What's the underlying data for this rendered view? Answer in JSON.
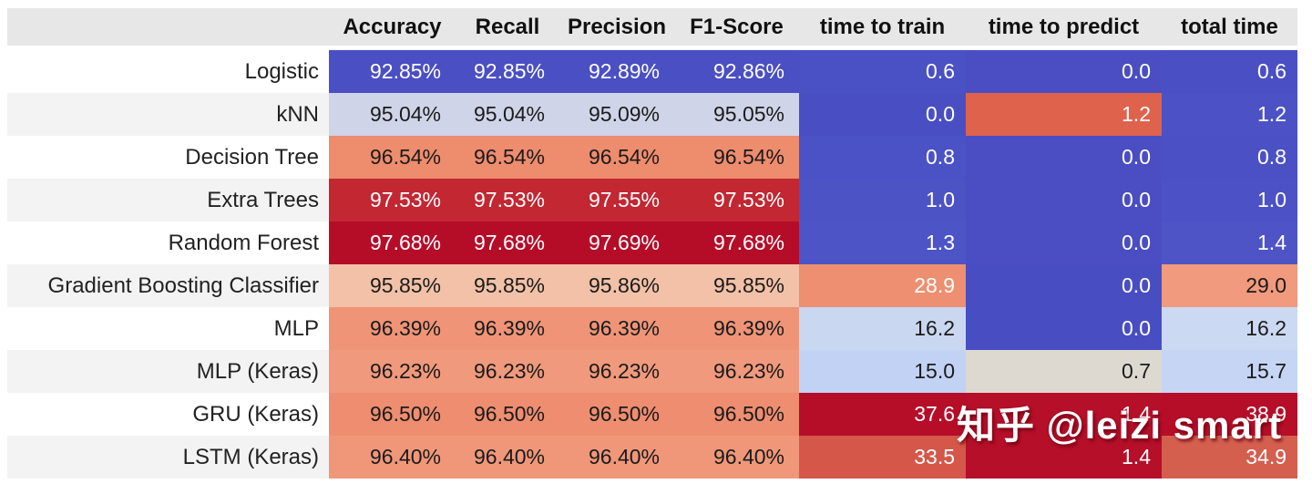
{
  "colors": {
    "header_bg": "#e8e7e7",
    "label_stripe": "#f3f3f3",
    "label_plain": "#ffffff",
    "header_text": "#111111",
    "label_text": "#222222"
  },
  "table": {
    "corner_label": "",
    "columns": [
      {
        "label": "Accuracy"
      },
      {
        "label": "Recall"
      },
      {
        "label": "Precision"
      },
      {
        "label": "F1-Score"
      },
      {
        "label": "time to train"
      },
      {
        "label": "time to predict"
      },
      {
        "label": "total time"
      }
    ],
    "rows": [
      {
        "label": "Logistic",
        "cells": [
          {
            "text": "92.85%",
            "bg": "#4a4fc3",
            "fg": "#ffffff"
          },
          {
            "text": "92.85%",
            "bg": "#4a4fc3",
            "fg": "#ffffff"
          },
          {
            "text": "92.89%",
            "bg": "#4a4fc3",
            "fg": "#ffffff"
          },
          {
            "text": "92.86%",
            "bg": "#4a4fc3",
            "fg": "#ffffff"
          },
          {
            "text": "0.6",
            "bg": "#4a51c4",
            "fg": "#ffffff"
          },
          {
            "text": "0.0",
            "bg": "#4a4ec2",
            "fg": "#ffffff"
          },
          {
            "text": "0.6",
            "bg": "#4a50c3",
            "fg": "#ffffff"
          }
        ]
      },
      {
        "label": "kNN",
        "cells": [
          {
            "text": "95.04%",
            "bg": "#cfd4e8",
            "fg": "#1b1b1b"
          },
          {
            "text": "95.04%",
            "bg": "#cfd4e8",
            "fg": "#1b1b1b"
          },
          {
            "text": "95.09%",
            "bg": "#cfd4e8",
            "fg": "#1b1b1b"
          },
          {
            "text": "95.05%",
            "bg": "#cfd4e8",
            "fg": "#1b1b1b"
          },
          {
            "text": "0.0",
            "bg": "#494fc2",
            "fg": "#ffffff"
          },
          {
            "text": "1.2",
            "bg": "#df624d",
            "fg": "#ffffff"
          },
          {
            "text": "1.2",
            "bg": "#4c52c5",
            "fg": "#ffffff"
          }
        ]
      },
      {
        "label": "Decision Tree",
        "cells": [
          {
            "text": "96.54%",
            "bg": "#ee8c6e",
            "fg": "#1b1b1b"
          },
          {
            "text": "96.54%",
            "bg": "#ee8c6e",
            "fg": "#1b1b1b"
          },
          {
            "text": "96.54%",
            "bg": "#ee8c6e",
            "fg": "#1b1b1b"
          },
          {
            "text": "96.54%",
            "bg": "#ee8c6e",
            "fg": "#1b1b1b"
          },
          {
            "text": "0.8",
            "bg": "#4b52c5",
            "fg": "#ffffff"
          },
          {
            "text": "0.0",
            "bg": "#4a4ec2",
            "fg": "#ffffff"
          },
          {
            "text": "0.8",
            "bg": "#4b51c4",
            "fg": "#ffffff"
          }
        ]
      },
      {
        "label": "Extra Trees",
        "cells": [
          {
            "text": "97.53%",
            "bg": "#c22732",
            "fg": "#ffffff"
          },
          {
            "text": "97.53%",
            "bg": "#c22732",
            "fg": "#ffffff"
          },
          {
            "text": "97.55%",
            "bg": "#c22732",
            "fg": "#ffffff"
          },
          {
            "text": "97.53%",
            "bg": "#c22732",
            "fg": "#ffffff"
          },
          {
            "text": "1.0",
            "bg": "#4c53c5",
            "fg": "#ffffff"
          },
          {
            "text": "0.0",
            "bg": "#4a4ec2",
            "fg": "#ffffff"
          },
          {
            "text": "1.0",
            "bg": "#4c52c5",
            "fg": "#ffffff"
          }
        ]
      },
      {
        "label": "Random Forest",
        "cells": [
          {
            "text": "97.68%",
            "bg": "#b50d28",
            "fg": "#ffffff"
          },
          {
            "text": "97.68%",
            "bg": "#b50d28",
            "fg": "#ffffff"
          },
          {
            "text": "97.69%",
            "bg": "#b50d28",
            "fg": "#ffffff"
          },
          {
            "text": "97.68%",
            "bg": "#b50d28",
            "fg": "#ffffff"
          },
          {
            "text": "1.3",
            "bg": "#4d54c6",
            "fg": "#ffffff"
          },
          {
            "text": "0.0",
            "bg": "#4a4ec2",
            "fg": "#ffffff"
          },
          {
            "text": "1.4",
            "bg": "#4e54c6",
            "fg": "#ffffff"
          }
        ]
      },
      {
        "label": "Gradient Boosting Classifier",
        "cells": [
          {
            "text": "95.85%",
            "bg": "#f2c1a7",
            "fg": "#1b1b1b"
          },
          {
            "text": "95.85%",
            "bg": "#f2c1a7",
            "fg": "#1b1b1b"
          },
          {
            "text": "95.86%",
            "bg": "#f2c1a7",
            "fg": "#1b1b1b"
          },
          {
            "text": "95.85%",
            "bg": "#f2c1a7",
            "fg": "#1b1b1b"
          },
          {
            "text": "28.9",
            "bg": "#ee8f71",
            "fg": "#ffffff"
          },
          {
            "text": "0.0",
            "bg": "#484ec2",
            "fg": "#ffffff"
          },
          {
            "text": "29.0",
            "bg": "#f19a7d",
            "fg": "#1b1b1b"
          }
        ]
      },
      {
        "label": "MLP",
        "cells": [
          {
            "text": "96.39%",
            "bg": "#ef9477",
            "fg": "#1b1b1b"
          },
          {
            "text": "96.39%",
            "bg": "#ef9477",
            "fg": "#1b1b1b"
          },
          {
            "text": "96.39%",
            "bg": "#ef9477",
            "fg": "#1b1b1b"
          },
          {
            "text": "96.39%",
            "bg": "#ef9477",
            "fg": "#1b1b1b"
          },
          {
            "text": "16.2",
            "bg": "#c9d7f0",
            "fg": "#1b1b1b"
          },
          {
            "text": "0.0",
            "bg": "#484ec2",
            "fg": "#ffffff"
          },
          {
            "text": "16.2",
            "bg": "#cbd9f2",
            "fg": "#1b1b1b"
          }
        ]
      },
      {
        "label": "MLP (Keras)",
        "cells": [
          {
            "text": "96.23%",
            "bg": "#f0997c",
            "fg": "#1b1b1b"
          },
          {
            "text": "96.23%",
            "bg": "#f0997c",
            "fg": "#1b1b1b"
          },
          {
            "text": "96.23%",
            "bg": "#f0997c",
            "fg": "#1b1b1b"
          },
          {
            "text": "96.23%",
            "bg": "#f0997c",
            "fg": "#1b1b1b"
          },
          {
            "text": "15.0",
            "bg": "#c2d2f4",
            "fg": "#1b1b1b"
          },
          {
            "text": "0.7",
            "bg": "#ddd9d1",
            "fg": "#1b1b1b"
          },
          {
            "text": "15.7",
            "bg": "#c6d5f3",
            "fg": "#1b1b1b"
          }
        ]
      },
      {
        "label": "GRU (Keras)",
        "cells": [
          {
            "text": "96.50%",
            "bg": "#ee8d70",
            "fg": "#1b1b1b"
          },
          {
            "text": "96.50%",
            "bg": "#ee8d70",
            "fg": "#1b1b1b"
          },
          {
            "text": "96.50%",
            "bg": "#ee8d70",
            "fg": "#1b1b1b"
          },
          {
            "text": "96.50%",
            "bg": "#ee8d70",
            "fg": "#1b1b1b"
          },
          {
            "text": "37.6",
            "bg": "#b60d28",
            "fg": "#ffffff"
          },
          {
            "text": "1.4",
            "bg": "#b50f2a",
            "fg": "#ffffff"
          },
          {
            "text": "38.9",
            "bg": "#b60d28",
            "fg": "#ffffff"
          }
        ]
      },
      {
        "label": "LSTM (Keras)",
        "cells": [
          {
            "text": "96.40%",
            "bg": "#f0977a",
            "fg": "#1b1b1b"
          },
          {
            "text": "96.40%",
            "bg": "#f0977a",
            "fg": "#1b1b1b"
          },
          {
            "text": "96.40%",
            "bg": "#f0977a",
            "fg": "#1b1b1b"
          },
          {
            "text": "96.40%",
            "bg": "#f0977a",
            "fg": "#1b1b1b"
          },
          {
            "text": "33.5",
            "bg": "#d4574a",
            "fg": "#ffffff"
          },
          {
            "text": "1.4",
            "bg": "#b50f2a",
            "fg": "#ffffff"
          },
          {
            "text": "34.9",
            "bg": "#d45f4f",
            "fg": "#ffffff"
          }
        ]
      }
    ]
  },
  "watermark": {
    "text": "知乎 @leizi smart"
  },
  "chart_data": {
    "type": "table",
    "columns": [
      "Accuracy",
      "Recall",
      "Precision",
      "F1-Score",
      "time to train",
      "time to predict",
      "total time"
    ],
    "row_labels": [
      "Logistic",
      "kNN",
      "Decision Tree",
      "Extra Trees",
      "Random Forest",
      "Gradient Boosting Classifier",
      "MLP",
      "MLP (Keras)",
      "GRU (Keras)",
      "LSTM (Keras)"
    ],
    "values": [
      [
        92.85,
        92.85,
        92.89,
        92.86,
        0.6,
        0.0,
        0.6
      ],
      [
        95.04,
        95.04,
        95.09,
        95.05,
        0.0,
        1.2,
        1.2
      ],
      [
        96.54,
        96.54,
        96.54,
        96.54,
        0.8,
        0.0,
        0.8
      ],
      [
        97.53,
        97.53,
        97.55,
        97.53,
        1.0,
        0.0,
        1.0
      ],
      [
        97.68,
        97.68,
        97.69,
        97.68,
        1.3,
        0.0,
        1.4
      ],
      [
        95.85,
        95.85,
        95.86,
        95.85,
        28.9,
        0.0,
        29.0
      ],
      [
        96.39,
        96.39,
        96.39,
        96.39,
        16.2,
        0.0,
        16.2
      ],
      [
        96.23,
        96.23,
        96.23,
        96.23,
        15.0,
        0.7,
        15.7
      ],
      [
        96.5,
        96.5,
        96.5,
        96.5,
        37.6,
        1.4,
        38.9
      ],
      [
        96.4,
        96.4,
        96.4,
        96.4,
        33.5,
        1.4,
        34.9
      ]
    ],
    "percent_columns": [
      "Accuracy",
      "Recall",
      "Precision",
      "F1-Score"
    ],
    "colormap": "coolwarm per column"
  }
}
